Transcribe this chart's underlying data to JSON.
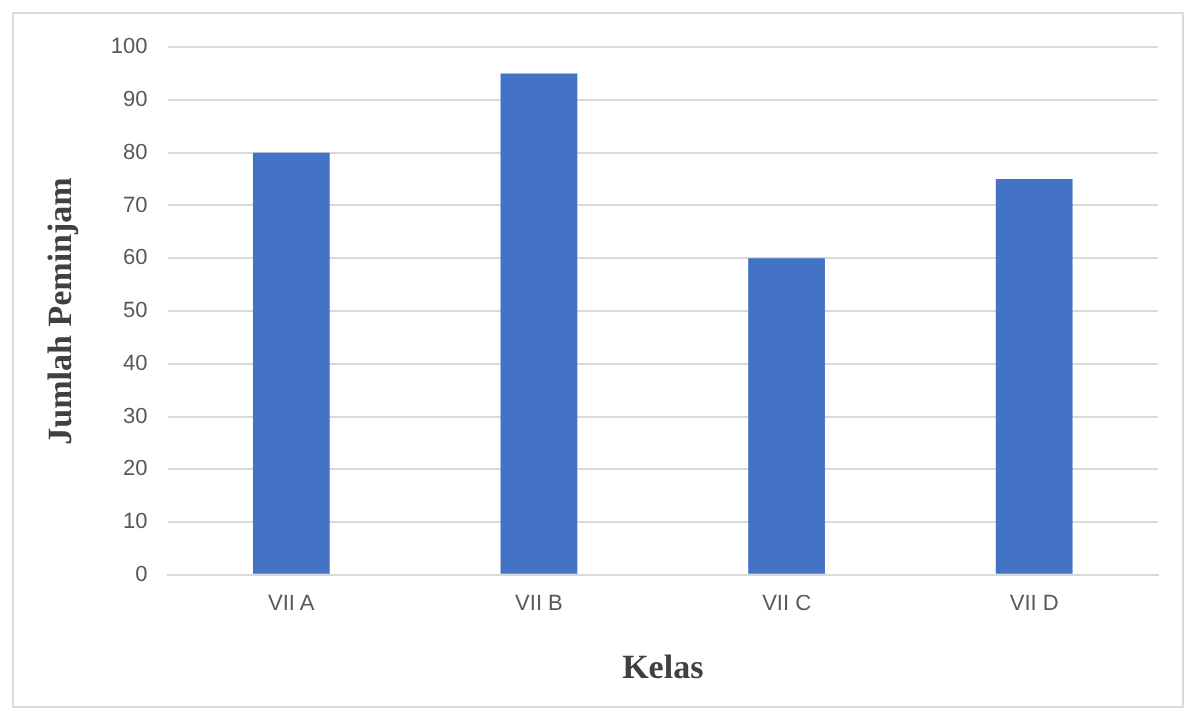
{
  "chart_data": {
    "type": "bar",
    "xlabel": "Kelas",
    "ylabel": "Jumlah Peminjam",
    "categories": [
      "VII A",
      "VII B",
      "VII C",
      "VII D"
    ],
    "values": [
      80,
      95,
      60,
      75
    ],
    "color": "#4472c4",
    "ylim": [
      0,
      100
    ],
    "yticks": [
      0,
      10,
      20,
      30,
      40,
      50,
      60,
      70,
      80,
      90,
      100
    ],
    "grid": "y",
    "legend": false
  }
}
